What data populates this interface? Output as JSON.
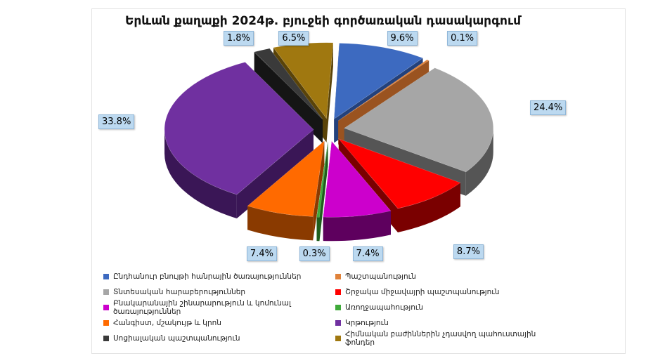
{
  "chart_data": {
    "type": "pie",
    "title": "Երևան քաղաքի 2024թ. բյուջեի գործառական դասակարգում",
    "slices": [
      {
        "name": "Ընդհանուր բնույթի հանրային ծառայություններ",
        "value": 9.6,
        "label": "9.6%",
        "color": "#3d6ac0",
        "side": "#23417c"
      },
      {
        "name": "Պաշտպանություն",
        "value": 0.1,
        "label": "0.1%",
        "color": "#e0823a",
        "side": "#9a5320"
      },
      {
        "name": "Տնտեսական հարաբերություններ",
        "value": 24.4,
        "label": "24.4%",
        "color": "#a6a6a6",
        "side": "#555555"
      },
      {
        "name": "Շրջակա միջավայրի պաշտպանություն",
        "value": 8.7,
        "label": "8.7%",
        "color": "#ff0000",
        "side": "#7a0000"
      },
      {
        "name": "Բնակարանային շինարարություն և կոմունալ ծառայություններ",
        "value": 7.4,
        "label": "7.4%",
        "color": "#cc00cc",
        "side": "#5e005e"
      },
      {
        "name": "Առողջապահություն",
        "value": 0.3,
        "label": "0.3%",
        "color": "#3faa3a",
        "side": "#1f5e1c"
      },
      {
        "name": "Հանգիստ, մշակույթ և կրոն",
        "value": 7.4,
        "label": "7.4%",
        "color": "#ff6a00",
        "side": "#8a3a00"
      },
      {
        "name": "Կրթություն",
        "value": 33.8,
        "label": "33.8%",
        "color": "#7030a0",
        "side": "#3a1656"
      },
      {
        "name": "Սոցիալական պաշտպանություն",
        "value": 1.8,
        "label": "1.8%",
        "color": "#3a3a3a",
        "side": "#151515"
      },
      {
        "name": "Հիմնական բաժիններին չդասվող պահուստային ֆոնդեր",
        "value": 6.5,
        "label": "6.5%",
        "color": "#a07810",
        "side": "#5a4308"
      }
    ],
    "legend_position": "bottom"
  }
}
